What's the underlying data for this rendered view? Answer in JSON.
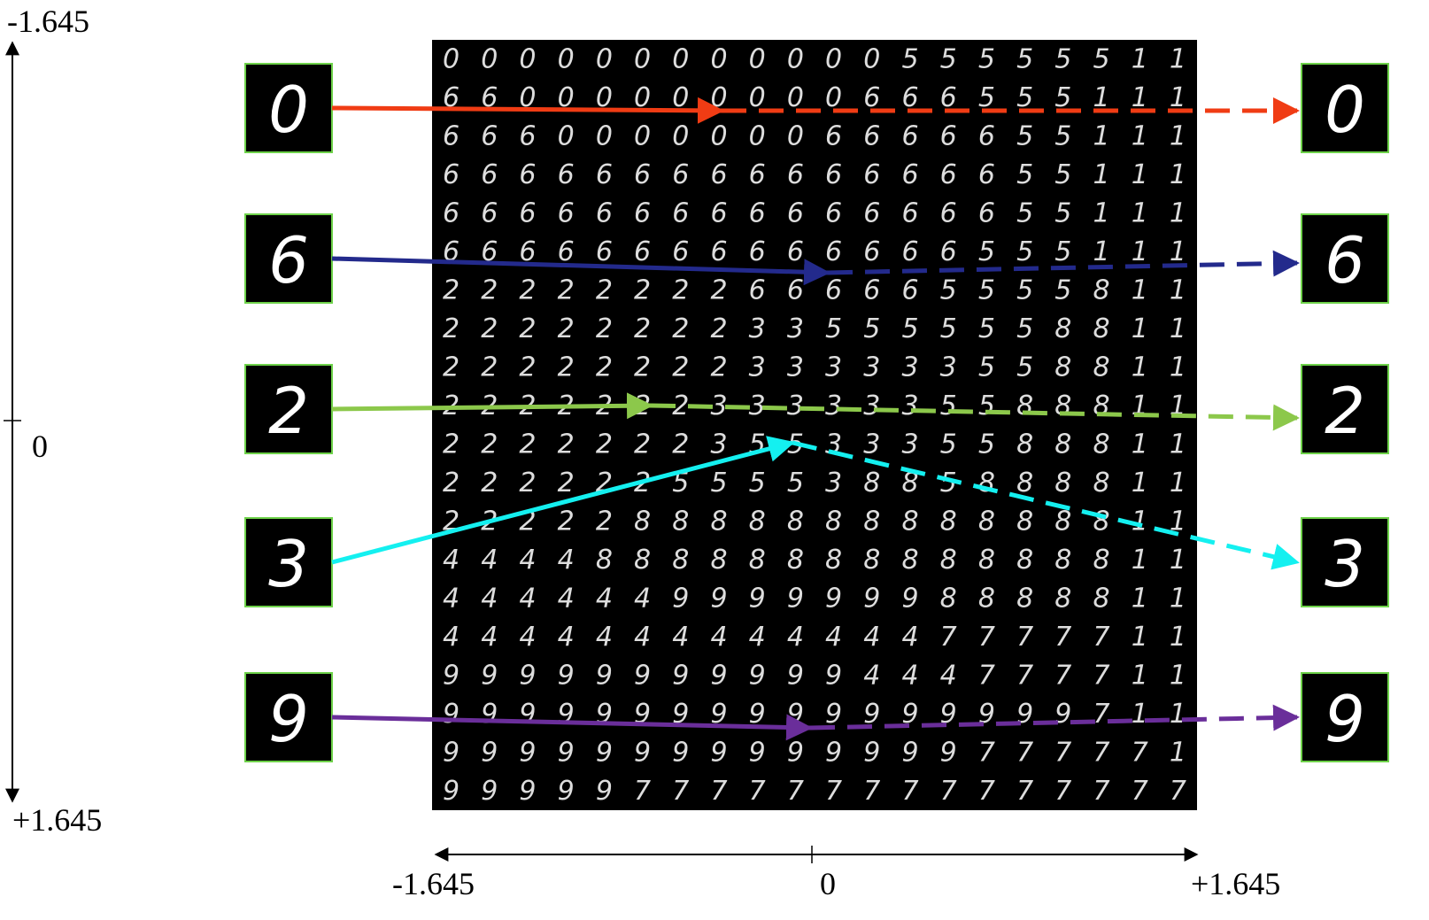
{
  "y_axis": {
    "ticks": [
      "-1.645",
      "0",
      "+1.645"
    ]
  },
  "x_axis": {
    "ticks": [
      "-1.645",
      "0",
      "+1.645"
    ]
  },
  "grid": {
    "rows": [
      "00000000000055555511",
      "66000000000666555111",
      "66600000006666655111",
      "66666666666666655111",
      "66666666666666655111",
      "66666666666666555111",
      "22222222666665555811",
      "22222222335555558811",
      "22222222333333558811",
      "22222223333335588811",
      "22222223553335588811",
      "22222255553885888811",
      "22222888888888888811",
      "44448888888888888811",
      "44444499999998888811",
      "44444444444447777711",
      "99999999999444777711",
      "99999999999999999711",
      "99999999999999777771",
      "99999777777777777777"
    ]
  },
  "inputs": [
    "0",
    "6",
    "2",
    "3",
    "9"
  ],
  "outputs": [
    "0",
    "6",
    "2",
    "3",
    "9"
  ]
}
